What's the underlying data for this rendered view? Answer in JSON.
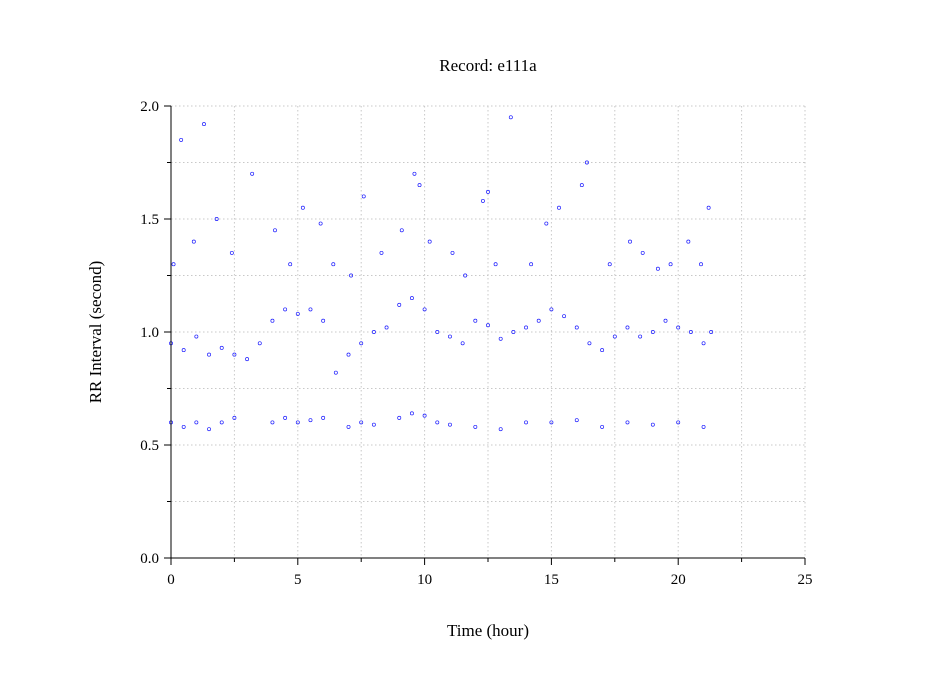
{
  "chart_data": {
    "type": "scatter",
    "title": "Record:  e111a",
    "xlabel": "Time (hour)",
    "ylabel": "RR Interval (second)",
    "xlim": [
      0,
      25
    ],
    "ylim": [
      0.0,
      2.0
    ],
    "x_ticks": [
      "0",
      "5",
      "10",
      "15",
      "20",
      "25"
    ],
    "y_ticks": [
      "0.0",
      "0.5",
      "1.0",
      "1.5",
      "2.0"
    ],
    "grid": true,
    "marker": "open-circle",
    "color": "#1a1aff",
    "series": [
      {
        "x": [
          0.0,
          0.5,
          1.0,
          1.5,
          2.0,
          2.5,
          3.0,
          3.5,
          4.0,
          4.5,
          5.0,
          5.5,
          6.0,
          6.5,
          7.0,
          7.5,
          8.0,
          8.5,
          9.0,
          9.5,
          10.0,
          10.5,
          11.0,
          11.5,
          12.0,
          12.5,
          13.0,
          13.5,
          14.0,
          14.5,
          15.0,
          15.5,
          16.0,
          16.5,
          17.0,
          17.5,
          18.0,
          18.5,
          19.0,
          19.5,
          20.0,
          20.5,
          21.0,
          21.3
        ],
        "y": [
          0.95,
          0.92,
          0.98,
          0.9,
          0.93,
          0.9,
          0.88,
          0.95,
          1.05,
          1.1,
          1.08,
          1.1,
          1.05,
          0.82,
          0.9,
          0.95,
          1.0,
          1.02,
          1.12,
          1.15,
          1.1,
          1.0,
          0.98,
          0.95,
          1.05,
          1.03,
          0.97,
          1.0,
          1.02,
          1.05,
          1.1,
          1.07,
          1.02,
          0.95,
          0.92,
          0.98,
          1.02,
          0.98,
          1.0,
          1.05,
          1.02,
          1.0,
          0.95,
          1.0
        ]
      },
      {
        "x": [
          0.0,
          0.5,
          1.0,
          1.5,
          2.0,
          2.5,
          4.0,
          4.5,
          5.0,
          5.5,
          6.0,
          7.0,
          7.5,
          8.0,
          9.0,
          9.5,
          10.0,
          10.5,
          11.0,
          12.0,
          13.0,
          14.0,
          15.0,
          16.0,
          17.0,
          18.0,
          19.0,
          20.0,
          21.0
        ],
        "y": [
          0.6,
          0.58,
          0.6,
          0.57,
          0.6,
          0.62,
          0.6,
          0.62,
          0.6,
          0.61,
          0.62,
          0.58,
          0.6,
          0.59,
          0.62,
          0.64,
          0.63,
          0.6,
          0.59,
          0.58,
          0.57,
          0.6,
          0.6,
          0.61,
          0.58,
          0.6,
          0.59,
          0.6,
          0.58
        ]
      },
      {
        "x": [
          0.1,
          0.4,
          0.9,
          1.3,
          1.8,
          2.4,
          3.2,
          4.1,
          4.7,
          5.2,
          5.9,
          6.4,
          7.1,
          7.6,
          8.3,
          9.1,
          9.6,
          9.8,
          10.2,
          11.1,
          11.6,
          12.3,
          12.5,
          12.8,
          13.4,
          14.2,
          14.8,
          15.3,
          16.2,
          16.4,
          17.3,
          18.1,
          18.6,
          19.2,
          19.7,
          20.4,
          20.9,
          21.2
        ],
        "y": [
          1.3,
          1.85,
          1.4,
          1.92,
          1.5,
          1.35,
          1.7,
          1.45,
          1.3,
          1.55,
          1.48,
          1.3,
          1.25,
          1.6,
          1.35,
          1.45,
          1.7,
          1.65,
          1.4,
          1.35,
          1.25,
          1.58,
          1.62,
          1.3,
          1.95,
          1.3,
          1.48,
          1.55,
          1.65,
          1.75,
          1.3,
          1.4,
          1.35,
          1.28,
          1.3,
          1.4,
          1.3,
          1.55
        ]
      }
    ]
  }
}
